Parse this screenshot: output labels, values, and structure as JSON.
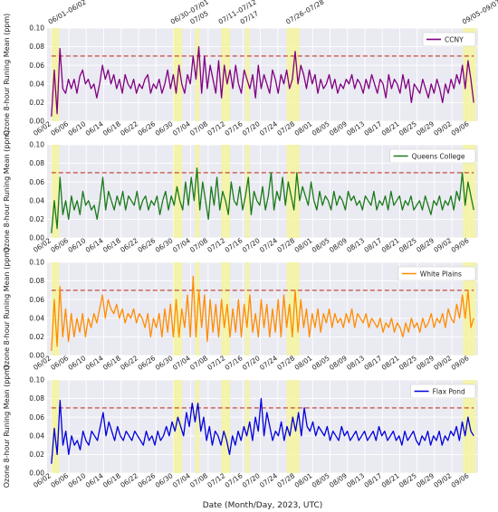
{
  "chart_data": {
    "type": "line",
    "xlabel": "Date (Month/Day, 2023, UTC)",
    "ylabel": "Ozone 8-hour Runing Mean (ppm)",
    "ylim": [
      0,
      0.1
    ],
    "yticks": [
      "0.00",
      "0.02",
      "0.04",
      "0.06",
      "0.08",
      "0.10"
    ],
    "xlim_days": [
      152,
      251
    ],
    "threshold": 0.07,
    "threshold_color": "#c0392b",
    "highlight_color": "#f5f5a0",
    "event_labels": [
      "06/01–06/02",
      "06/30–07/01",
      "07/05",
      "07/11–07/12",
      "07/17",
      "07/26–07/28",
      "09/05–09/07"
    ],
    "event_windows": [
      [
        153,
        154.8
      ],
      [
        181,
        183
      ],
      [
        186,
        187
      ],
      [
        192,
        194
      ],
      [
        197.5,
        198.5
      ],
      [
        207,
        210
      ],
      [
        247.5,
        250.5
      ]
    ],
    "panels": [
      {
        "name": "CCNY",
        "color": "#800080",
        "x_ticks": [
          "06/02",
          "06/06",
          "06/10",
          "06/14",
          "06/18",
          "06/22",
          "06/26",
          "06/30",
          "07/04",
          "07/08",
          "07/12",
          "07/16",
          "07/20",
          "07/24",
          "07/28",
          "08/01",
          "08/05",
          "08/09",
          "08/13",
          "08/17",
          "08/21",
          "08/25",
          "08/29",
          "09/02",
          "09/06"
        ],
        "x_tick_days": [
          153,
          157,
          161,
          165,
          169,
          173,
          177,
          181,
          185,
          189,
          193,
          197,
          201,
          205,
          209,
          213,
          217,
          221,
          225,
          229,
          233,
          237,
          241,
          245,
          249
        ],
        "values": [
          0.005,
          0.055,
          0.008,
          0.078,
          0.035,
          0.03,
          0.045,
          0.035,
          0.045,
          0.03,
          0.048,
          0.055,
          0.04,
          0.045,
          0.035,
          0.04,
          0.025,
          0.04,
          0.06,
          0.045,
          0.055,
          0.04,
          0.05,
          0.035,
          0.045,
          0.03,
          0.05,
          0.04,
          0.035,
          0.045,
          0.03,
          0.04,
          0.035,
          0.045,
          0.05,
          0.03,
          0.04,
          0.035,
          0.045,
          0.03,
          0.04,
          0.055,
          0.035,
          0.05,
          0.03,
          0.06,
          0.04,
          0.03,
          0.05,
          0.04,
          0.07,
          0.045,
          0.08,
          0.03,
          0.07,
          0.035,
          0.06,
          0.045,
          0.03,
          0.065,
          0.025,
          0.06,
          0.04,
          0.055,
          0.035,
          0.06,
          0.04,
          0.03,
          0.055,
          0.045,
          0.035,
          0.05,
          0.025,
          0.06,
          0.035,
          0.05,
          0.04,
          0.03,
          0.055,
          0.045,
          0.03,
          0.05,
          0.04,
          0.055,
          0.035,
          0.045,
          0.075,
          0.04,
          0.06,
          0.05,
          0.035,
          0.055,
          0.04,
          0.05,
          0.03,
          0.045,
          0.035,
          0.04,
          0.05,
          0.035,
          0.045,
          0.03,
          0.04,
          0.035,
          0.045,
          0.04,
          0.05,
          0.035,
          0.045,
          0.04,
          0.03,
          0.045,
          0.035,
          0.05,
          0.04,
          0.03,
          0.045,
          0.04,
          0.025,
          0.05,
          0.035,
          0.045,
          0.04,
          0.03,
          0.05,
          0.035,
          0.045,
          0.02,
          0.04,
          0.035,
          0.03,
          0.045,
          0.035,
          0.025,
          0.04,
          0.03,
          0.045,
          0.035,
          0.02,
          0.04,
          0.03,
          0.045,
          0.035,
          0.05,
          0.04,
          0.06,
          0.035,
          0.065,
          0.045,
          0.02
        ]
      },
      {
        "name": "Queens College",
        "color": "#1a7a1a",
        "x_ticks": [
          "06/02",
          "06/06",
          "06/10",
          "06/14",
          "06/18",
          "06/22",
          "06/26",
          "06/30",
          "07/04",
          "07/08",
          "07/12",
          "07/16",
          "07/20",
          "07/24",
          "07/28",
          "08/01",
          "08/05",
          "08/09",
          "08/13",
          "08/17",
          "08/21",
          "08/25",
          "08/29",
          "09/02",
          "09/06"
        ],
        "x_tick_days": [
          153,
          157,
          161,
          165,
          169,
          173,
          177,
          181,
          185,
          189,
          193,
          197,
          201,
          205,
          209,
          213,
          217,
          221,
          225,
          229,
          233,
          237,
          241,
          245,
          249
        ],
        "values": [
          0.005,
          0.04,
          0.01,
          0.065,
          0.025,
          0.04,
          0.02,
          0.045,
          0.03,
          0.04,
          0.025,
          0.05,
          0.035,
          0.04,
          0.03,
          0.035,
          0.02,
          0.04,
          0.065,
          0.03,
          0.05,
          0.04,
          0.03,
          0.045,
          0.035,
          0.05,
          0.03,
          0.045,
          0.04,
          0.035,
          0.05,
          0.03,
          0.04,
          0.045,
          0.03,
          0.04,
          0.035,
          0.045,
          0.025,
          0.04,
          0.05,
          0.03,
          0.045,
          0.035,
          0.055,
          0.04,
          0.03,
          0.06,
          0.035,
          0.065,
          0.04,
          0.075,
          0.03,
          0.06,
          0.04,
          0.02,
          0.055,
          0.035,
          0.065,
          0.03,
          0.05,
          0.04,
          0.025,
          0.06,
          0.04,
          0.035,
          0.055,
          0.03,
          0.045,
          0.065,
          0.025,
          0.05,
          0.04,
          0.035,
          0.055,
          0.03,
          0.045,
          0.07,
          0.03,
          0.05,
          0.04,
          0.065,
          0.035,
          0.06,
          0.045,
          0.03,
          0.07,
          0.04,
          0.055,
          0.045,
          0.035,
          0.06,
          0.04,
          0.03,
          0.05,
          0.035,
          0.045,
          0.04,
          0.03,
          0.05,
          0.035,
          0.045,
          0.04,
          0.03,
          0.05,
          0.04,
          0.045,
          0.035,
          0.04,
          0.03,
          0.045,
          0.04,
          0.035,
          0.05,
          0.03,
          0.04,
          0.035,
          0.045,
          0.03,
          0.05,
          0.035,
          0.04,
          0.045,
          0.03,
          0.04,
          0.035,
          0.045,
          0.03,
          0.035,
          0.04,
          0.03,
          0.045,
          0.035,
          0.025,
          0.04,
          0.035,
          0.045,
          0.03,
          0.04,
          0.035,
          0.045,
          0.03,
          0.05,
          0.04,
          0.07,
          0.035,
          0.06,
          0.045,
          0.03
        ]
      },
      {
        "name": "White Plains",
        "color": "#ff8c00",
        "x_ticks": [
          "06/02",
          "06/06",
          "06/10",
          "06/14",
          "06/18",
          "06/22",
          "06/26",
          "06/30",
          "07/04",
          "07/08",
          "07/12",
          "07/16",
          "07/20",
          "07/24",
          "07/28",
          "08/01",
          "08/05",
          "08/09",
          "08/13",
          "08/17",
          "08/21",
          "08/25",
          "08/29",
          "09/02",
          "09/06"
        ],
        "x_tick_days": [
          153,
          157,
          161,
          165,
          169,
          173,
          177,
          181,
          185,
          189,
          193,
          197,
          201,
          205,
          209,
          213,
          217,
          221,
          225,
          229,
          233,
          237,
          241,
          245,
          249
        ],
        "values": [
          0.005,
          0.06,
          0.01,
          0.074,
          0.02,
          0.05,
          0.015,
          0.045,
          0.02,
          0.04,
          0.025,
          0.045,
          0.02,
          0.04,
          0.03,
          0.045,
          0.035,
          0.05,
          0.065,
          0.04,
          0.06,
          0.05,
          0.045,
          0.055,
          0.04,
          0.05,
          0.035,
          0.045,
          0.04,
          0.05,
          0.035,
          0.045,
          0.04,
          0.03,
          0.045,
          0.02,
          0.04,
          0.03,
          0.045,
          0.02,
          0.05,
          0.025,
          0.055,
          0.02,
          0.06,
          0.02,
          0.05,
          0.03,
          0.065,
          0.02,
          0.085,
          0.02,
          0.07,
          0.03,
          0.065,
          0.015,
          0.06,
          0.025,
          0.055,
          0.02,
          0.06,
          0.03,
          0.055,
          0.02,
          0.05,
          0.025,
          0.06,
          0.02,
          0.055,
          0.03,
          0.065,
          0.025,
          0.045,
          0.02,
          0.06,
          0.03,
          0.055,
          0.02,
          0.05,
          0.025,
          0.06,
          0.02,
          0.065,
          0.03,
          0.055,
          0.02,
          0.07,
          0.025,
          0.06,
          0.03,
          0.05,
          0.02,
          0.045,
          0.03,
          0.05,
          0.025,
          0.045,
          0.035,
          0.05,
          0.03,
          0.045,
          0.035,
          0.04,
          0.03,
          0.045,
          0.035,
          0.05,
          0.03,
          0.045,
          0.04,
          0.035,
          0.045,
          0.03,
          0.04,
          0.035,
          0.03,
          0.04,
          0.025,
          0.035,
          0.03,
          0.04,
          0.025,
          0.035,
          0.03,
          0.02,
          0.035,
          0.025,
          0.04,
          0.03,
          0.035,
          0.025,
          0.04,
          0.03,
          0.035,
          0.045,
          0.03,
          0.04,
          0.035,
          0.045,
          0.03,
          0.05,
          0.04,
          0.035,
          0.055,
          0.04,
          0.065,
          0.04,
          0.07,
          0.03,
          0.04
        ]
      },
      {
        "name": "Flax Pond",
        "color": "#0000dd",
        "x_ticks": [
          "06/02",
          "06/06",
          "06/10",
          "06/14",
          "06/18",
          "06/22",
          "06/26",
          "06/30",
          "07/04",
          "07/08",
          "07/12",
          "07/16",
          "07/20",
          "07/24",
          "07/28",
          "08/01",
          "08/05",
          "08/09",
          "08/13",
          "08/17",
          "08/21",
          "08/25",
          "08/29",
          "09/02",
          "09/06"
        ],
        "x_tick_days": [
          153,
          157,
          161,
          165,
          169,
          173,
          177,
          181,
          185,
          189,
          193,
          197,
          201,
          205,
          209,
          213,
          217,
          221,
          225,
          229,
          233,
          237,
          241,
          245,
          249
        ],
        "values": [
          0.01,
          0.048,
          0.02,
          0.078,
          0.03,
          0.045,
          0.02,
          0.04,
          0.03,
          0.035,
          0.025,
          0.045,
          0.035,
          0.03,
          0.045,
          0.04,
          0.035,
          0.05,
          0.065,
          0.04,
          0.055,
          0.045,
          0.035,
          0.05,
          0.04,
          0.035,
          0.045,
          0.04,
          0.035,
          0.045,
          0.04,
          0.035,
          0.03,
          0.045,
          0.035,
          0.04,
          0.03,
          0.045,
          0.035,
          0.04,
          0.05,
          0.04,
          0.055,
          0.045,
          0.06,
          0.05,
          0.04,
          0.065,
          0.05,
          0.075,
          0.055,
          0.075,
          0.045,
          0.06,
          0.035,
          0.05,
          0.03,
          0.045,
          0.04,
          0.03,
          0.045,
          0.035,
          0.02,
          0.04,
          0.03,
          0.045,
          0.035,
          0.05,
          0.04,
          0.055,
          0.035,
          0.06,
          0.045,
          0.08,
          0.04,
          0.065,
          0.05,
          0.035,
          0.045,
          0.04,
          0.055,
          0.035,
          0.05,
          0.04,
          0.06,
          0.045,
          0.065,
          0.04,
          0.07,
          0.05,
          0.045,
          0.055,
          0.04,
          0.05,
          0.045,
          0.04,
          0.05,
          0.035,
          0.045,
          0.04,
          0.035,
          0.05,
          0.04,
          0.045,
          0.035,
          0.04,
          0.045,
          0.035,
          0.04,
          0.045,
          0.035,
          0.04,
          0.045,
          0.035,
          0.05,
          0.04,
          0.045,
          0.035,
          0.04,
          0.045,
          0.035,
          0.04,
          0.03,
          0.045,
          0.035,
          0.04,
          0.045,
          0.035,
          0.03,
          0.04,
          0.035,
          0.045,
          0.03,
          0.04,
          0.035,
          0.045,
          0.03,
          0.04,
          0.035,
          0.045,
          0.04,
          0.05,
          0.035,
          0.055,
          0.04,
          0.06,
          0.045,
          0.04
        ]
      }
    ]
  }
}
